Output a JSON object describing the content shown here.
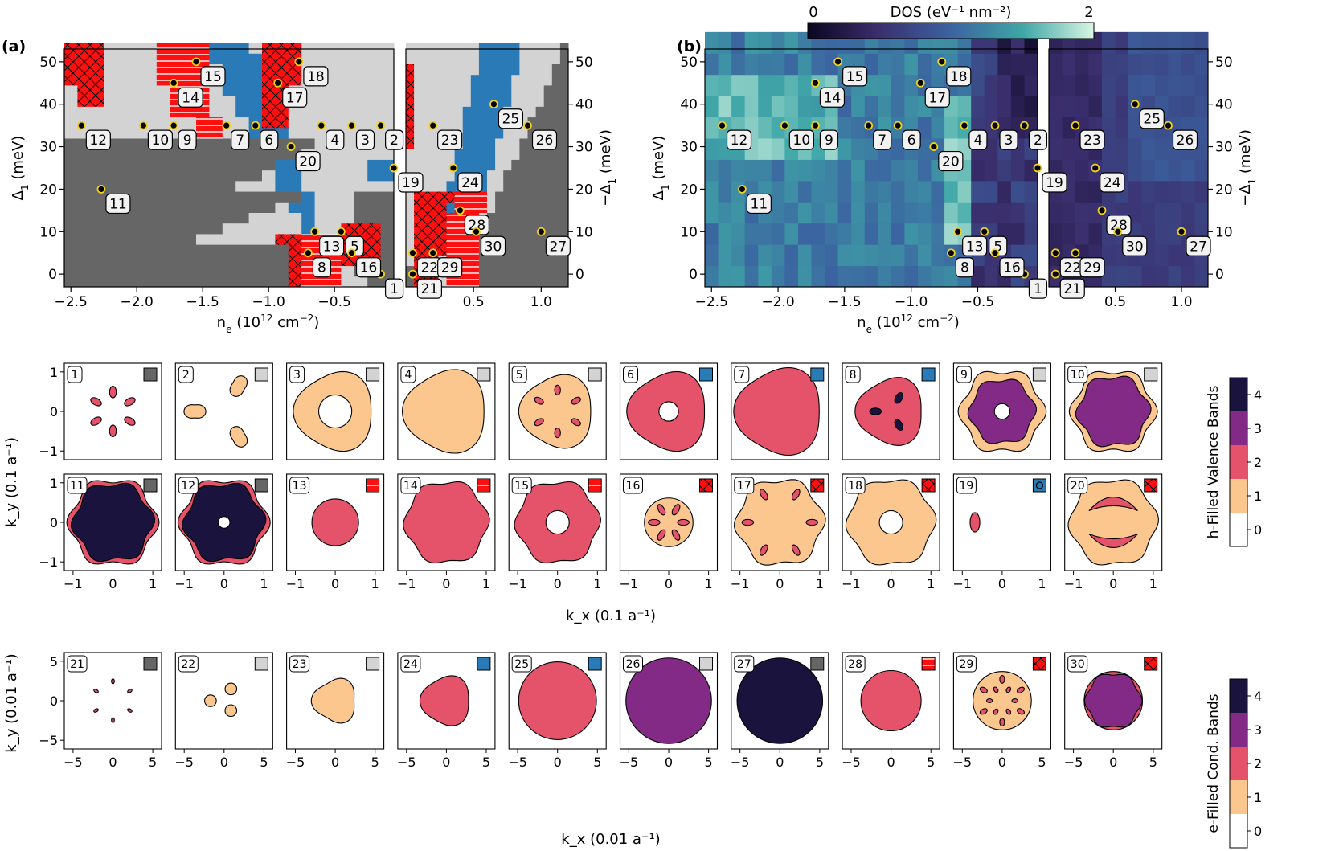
{
  "colors": {
    "dark_gray": "#666666",
    "light_gray": "#d3d3d3",
    "blue": "#2a7ab8",
    "red": "#ff1010",
    "white": "#ffffff",
    "marker": "#f2d21a",
    "fill_0": "#ffffff",
    "fill_1": "#fcc78e",
    "fill_2": "#e5536a",
    "fill_3": "#822a85",
    "fill_4": "#19133e",
    "dos_low": "#0b0621",
    "dos_mid": "#3b63a0",
    "dos_high": "#d8f6e3"
  },
  "panels": {
    "a_label": "(a)",
    "b_label": "(b)"
  },
  "chart_data": [
    {
      "id": "phase-diagram-a",
      "type": "heatmap",
      "title": "(a)",
      "xlabel": "n_e (10^12 cm^-2)",
      "ylabel_left": "Δ1 (meV)",
      "ylabel_right": "−Δ1 (meV)",
      "left_xlim": [
        -2.55,
        -0.05
      ],
      "left_xticks": [
        "−2.5",
        "−2.0",
        "−1.5",
        "−1.0",
        "−0.5"
      ],
      "right_xlim": [
        0.0,
        1.2
      ],
      "right_xticks": [
        "0.5",
        "1.0"
      ],
      "ylim": [
        -3,
        53
      ],
      "yticks": [
        "0",
        "10",
        "20",
        "30",
        "40",
        "50"
      ],
      "legend_patterns": [
        "dark gray",
        "light gray",
        "blue",
        "red striped",
        "red crosshatched"
      ]
    },
    {
      "id": "dos-map-b",
      "type": "heatmap",
      "title": "(b)",
      "colorbar_label": "DOS (eV⁻¹ nm⁻²)",
      "colorbar_ticks": [
        "0",
        "2"
      ],
      "colorbar_range": [
        0,
        2
      ],
      "xlabel": "n_e (10^12 cm^-2)",
      "ylabel_left": "Δ1 (meV)",
      "ylabel_right": "−Δ1 (meV)"
    },
    {
      "id": "points",
      "type": "scatter",
      "points": [
        {
          "id": "1",
          "x": -0.15,
          "y": 0
        },
        {
          "id": "2",
          "x": -0.15,
          "y": 35
        },
        {
          "id": "3",
          "x": -0.37,
          "y": 35
        },
        {
          "id": "4",
          "x": -0.6,
          "y": 35
        },
        {
          "id": "5",
          "x": -0.45,
          "y": 10
        },
        {
          "id": "6",
          "x": -1.1,
          "y": 35
        },
        {
          "id": "7",
          "x": -1.32,
          "y": 35
        },
        {
          "id": "8",
          "x": -0.7,
          "y": 5
        },
        {
          "id": "9",
          "x": -1.72,
          "y": 35
        },
        {
          "id": "10",
          "x": -1.95,
          "y": 35
        },
        {
          "id": "11",
          "x": -2.27,
          "y": 20
        },
        {
          "id": "12",
          "x": -2.42,
          "y": 35
        },
        {
          "id": "13",
          "x": -0.65,
          "y": 10
        },
        {
          "id": "14",
          "x": -1.72,
          "y": 45
        },
        {
          "id": "15",
          "x": -1.55,
          "y": 50
        },
        {
          "id": "16",
          "x": -0.37,
          "y": 5
        },
        {
          "id": "17",
          "x": -0.93,
          "y": 45
        },
        {
          "id": "18",
          "x": -0.77,
          "y": 50
        },
        {
          "id": "19",
          "x": -0.05,
          "y": 25
        },
        {
          "id": "20",
          "x": -0.83,
          "y": 30
        },
        {
          "id": "21",
          "x": 0.05,
          "y": 0
        },
        {
          "id": "22",
          "x": 0.05,
          "y": 5
        },
        {
          "id": "23",
          "x": 0.2,
          "y": 35
        },
        {
          "id": "24",
          "x": 0.35,
          "y": 25
        },
        {
          "id": "25",
          "x": 0.65,
          "y": 40
        },
        {
          "id": "26",
          "x": 0.9,
          "y": 35
        },
        {
          "id": "27",
          "x": 1.0,
          "y": 10
        },
        {
          "id": "28",
          "x": 0.4,
          "y": 15
        },
        {
          "id": "29",
          "x": 0.2,
          "y": 5
        },
        {
          "id": "30",
          "x": 0.52,
          "y": 10
        }
      ]
    },
    {
      "id": "fermi-surfaces-valence",
      "type": "other",
      "ylabel": "k_y (0.1 a⁻¹)",
      "xlabel": "k_x (0.1 a⁻¹)",
      "ticks": [
        "−1",
        "0",
        "1"
      ],
      "insets": [
        {
          "n": "1",
          "phase": "dark"
        },
        {
          "n": "2",
          "phase": "light"
        },
        {
          "n": "3",
          "phase": "light"
        },
        {
          "n": "4",
          "phase": "light"
        },
        {
          "n": "5",
          "phase": "light"
        },
        {
          "n": "6",
          "phase": "blue"
        },
        {
          "n": "7",
          "phase": "blue"
        },
        {
          "n": "8",
          "phase": "blue"
        },
        {
          "n": "9",
          "phase": "light"
        },
        {
          "n": "10",
          "phase": "light"
        },
        {
          "n": "11",
          "phase": "dark"
        },
        {
          "n": "12",
          "phase": "dark"
        },
        {
          "n": "13",
          "phase": "stripe"
        },
        {
          "n": "14",
          "phase": "stripe"
        },
        {
          "n": "15",
          "phase": "stripe"
        },
        {
          "n": "16",
          "phase": "hatch"
        },
        {
          "n": "17",
          "phase": "hatch"
        },
        {
          "n": "18",
          "phase": "hatch"
        },
        {
          "n": "19",
          "phase": "blue-ring"
        },
        {
          "n": "20",
          "phase": "hatch"
        }
      ]
    },
    {
      "id": "fermi-surfaces-conduction",
      "type": "other",
      "ylabel": "k_y (0.01 a⁻¹)",
      "xlabel": "k_x (0.01 a⁻¹)",
      "xticks": [
        "−5",
        "0",
        "5"
      ],
      "yticks": [
        "5",
        "0",
        "−5"
      ],
      "insets": [
        {
          "n": "21",
          "phase": "dark"
        },
        {
          "n": "22",
          "phase": "light"
        },
        {
          "n": "23",
          "phase": "light"
        },
        {
          "n": "24",
          "phase": "blue"
        },
        {
          "n": "25",
          "phase": "blue"
        },
        {
          "n": "26",
          "phase": "light"
        },
        {
          "n": "27",
          "phase": "dark"
        },
        {
          "n": "28",
          "phase": "stripe"
        },
        {
          "n": "29",
          "phase": "hatch"
        },
        {
          "n": "30",
          "phase": "hatch"
        }
      ]
    },
    {
      "id": "colorbar-valence",
      "type": "other",
      "label": "h-Filled Valence Bands",
      "ticks": [
        "0",
        "1",
        "2",
        "3",
        "4"
      ]
    },
    {
      "id": "colorbar-conduction",
      "type": "other",
      "label": "e-Filled Cond. Bands",
      "ticks": [
        "0",
        "1",
        "2",
        "3",
        "4"
      ]
    }
  ]
}
